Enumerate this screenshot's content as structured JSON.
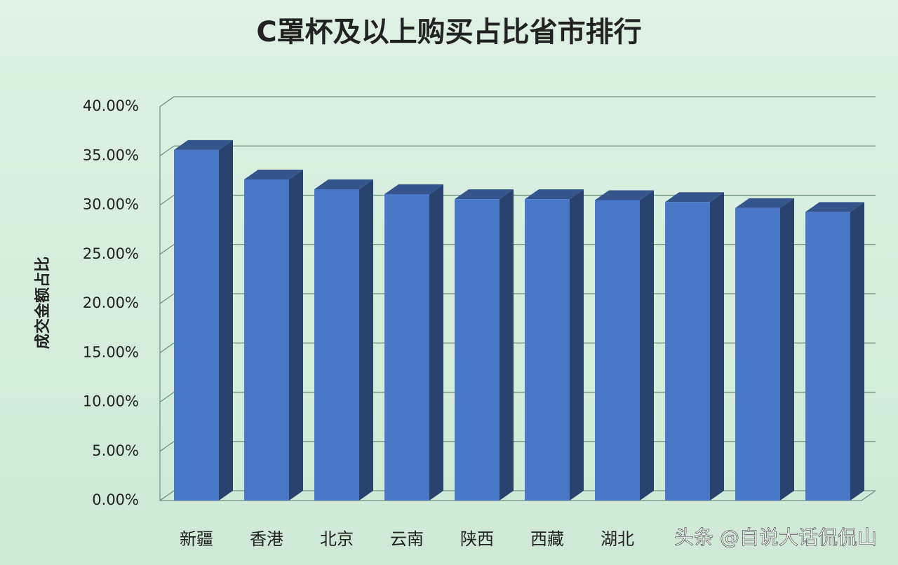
{
  "chart_data": {
    "type": "bar3d",
    "title": "C罩杯及以上购买占比省市排行",
    "y_label": "成交金额占比",
    "watermark": "头条 @自说大话侃侃山",
    "categories": [
      "新疆",
      "香港",
      "北京",
      "云南",
      "陕西",
      "西藏",
      "湖北",
      null,
      null,
      null
    ],
    "values": [
      35.6,
      32.6,
      31.6,
      31.1,
      30.6,
      30.6,
      30.5,
      30.3,
      29.7,
      29.3
    ],
    "color": "#4a78c8",
    "ylim": [
      0,
      40
    ],
    "yticks": [
      {
        "value": 0,
        "label": "0.00%"
      },
      {
        "value": 5,
        "label": "5.00%"
      },
      {
        "value": 10,
        "label": "10.00%"
      },
      {
        "value": 15,
        "label": "15.00%"
      },
      {
        "value": 20,
        "label": "20.00%"
      },
      {
        "value": 25,
        "label": "25.00%"
      },
      {
        "value": 30,
        "label": "30.00%"
      },
      {
        "value": 35,
        "label": "35.00%"
      },
      {
        "value": 40,
        "label": "40.00%"
      }
    ],
    "grid": true
  }
}
